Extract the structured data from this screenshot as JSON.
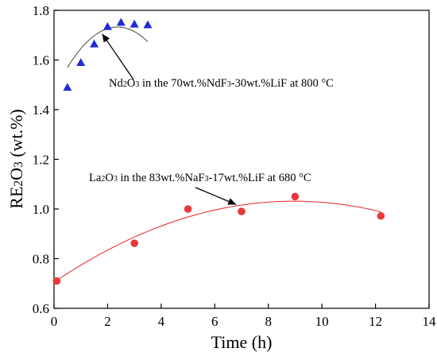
{
  "chart_data": {
    "type": "scatter",
    "xlabel": "Time (h)",
    "ylabel": {
      "base": "RE",
      "sub1": "2",
      "mid": "O",
      "sub2": "3",
      "suffix": " (wt.%)"
    },
    "xlim": [
      0,
      14
    ],
    "ylim": [
      0.6,
      1.8
    ],
    "x_ticks": [
      0,
      2,
      4,
      6,
      8,
      10,
      12,
      14
    ],
    "y_ticks": [
      0.6,
      0.8,
      1.0,
      1.2,
      1.4,
      1.6,
      1.8
    ],
    "x_tick_labels": [
      "0",
      "2",
      "4",
      "6",
      "8",
      "10",
      "12",
      "14"
    ],
    "y_tick_labels": [
      "0.6",
      "0.8",
      "1.0",
      "1.2",
      "1.4",
      "1.6",
      "1.8"
    ],
    "grid": false,
    "series": [
      {
        "marker": "triangle",
        "color": "#1f2bd6",
        "fit_color": "#555555",
        "x": [
          0.5,
          1.0,
          1.5,
          2.0,
          2.5,
          3.0,
          3.5
        ],
        "y": [
          1.49,
          1.59,
          1.665,
          1.735,
          1.752,
          1.745,
          1.742
        ],
        "fit": [
          1.471,
          0.2212,
          -0.0467
        ]
      },
      {
        "marker": "circle",
        "color": "#e8383a",
        "fit_color": "#e8383a",
        "x": [
          0.1,
          3.0,
          5.0,
          7.0,
          9.0,
          12.2
        ],
        "y": [
          0.71,
          0.862,
          1.0,
          0.99,
          1.05,
          0.972
        ],
        "fit": [
          0.705,
          0.0729,
          -0.00407
        ]
      }
    ],
    "annotations": [
      {
        "segments": [
          {
            "t": "Nd",
            "sub": false
          },
          {
            "t": "2",
            "sub": true
          },
          {
            "t": "O",
            "sub": false
          },
          {
            "t": "3",
            "sub": true
          },
          {
            "t": " in the 70wt.%NdF",
            "sub": false
          },
          {
            "t": "3",
            "sub": true
          },
          {
            "t": "-30wt.%LiF at 800 °C",
            "sub": false
          }
        ],
        "arrow_to": [
          1.8,
          1.705
        ]
      },
      {
        "segments": [
          {
            "t": "La",
            "sub": false
          },
          {
            "t": "2",
            "sub": true
          },
          {
            "t": "O",
            "sub": false
          },
          {
            "t": "3",
            "sub": true
          },
          {
            "t": " in the 83wt.%NaF",
            "sub": false
          },
          {
            "t": "3",
            "sub": true
          },
          {
            "t": "-17wt.%LiF at 680 °C",
            "sub": false
          }
        ],
        "arrow_to": [
          6.8,
          1.018
        ]
      }
    ]
  }
}
